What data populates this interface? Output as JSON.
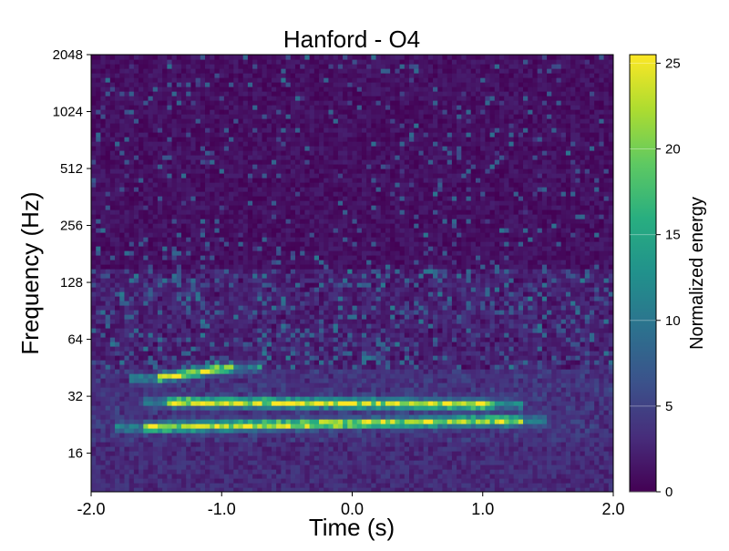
{
  "chart_data": {
    "type": "heatmap",
    "title": "Hanford - O4",
    "xlabel": "Time (s)",
    "ylabel": "Frequency (Hz)",
    "xlim": [
      -2.0,
      2.0
    ],
    "ylim": [
      10,
      2048
    ],
    "y_scale": "log2",
    "x_ticks": [
      -2.0,
      -1.0,
      0.0,
      1.0,
      2.0
    ],
    "x_tick_labels": [
      "-2.0",
      "-1.0",
      "0.0",
      "1.0",
      "2.0"
    ],
    "y_ticks": [
      16,
      32,
      64,
      128,
      256,
      512,
      1024,
      2048
    ],
    "y_tick_labels": [
      "16",
      "32",
      "64",
      "128",
      "256",
      "512",
      "1024",
      "2048"
    ],
    "colorbar": {
      "label": "Normalized energy",
      "range": [
        0,
        25.5
      ],
      "ticks": [
        0,
        5,
        10,
        15,
        20,
        25
      ],
      "tick_labels": [
        "0",
        "5",
        "10",
        "15",
        "20",
        "25"
      ],
      "colormap": "viridis"
    },
    "colormap_stops": [
      "#440154",
      "#472d7b",
      "#3b528b",
      "#2c728e",
      "#21918c",
      "#28ae80",
      "#5ec962",
      "#addc30",
      "#fde725"
    ],
    "grid": false,
    "features": [
      {
        "t_start": -1.6,
        "t_end": 1.3,
        "f_start": 22,
        "f_end": 24,
        "peak": 25,
        "description": "chirp track"
      },
      {
        "t_start": -1.4,
        "t_end": 1.1,
        "f_start": 30,
        "f_end": 29,
        "peak": 25,
        "description": "upper track"
      },
      {
        "t_start": -1.5,
        "t_end": -0.9,
        "f_start": 40,
        "f_end": 46,
        "peak": 24,
        "description": "early burst"
      }
    ]
  }
}
